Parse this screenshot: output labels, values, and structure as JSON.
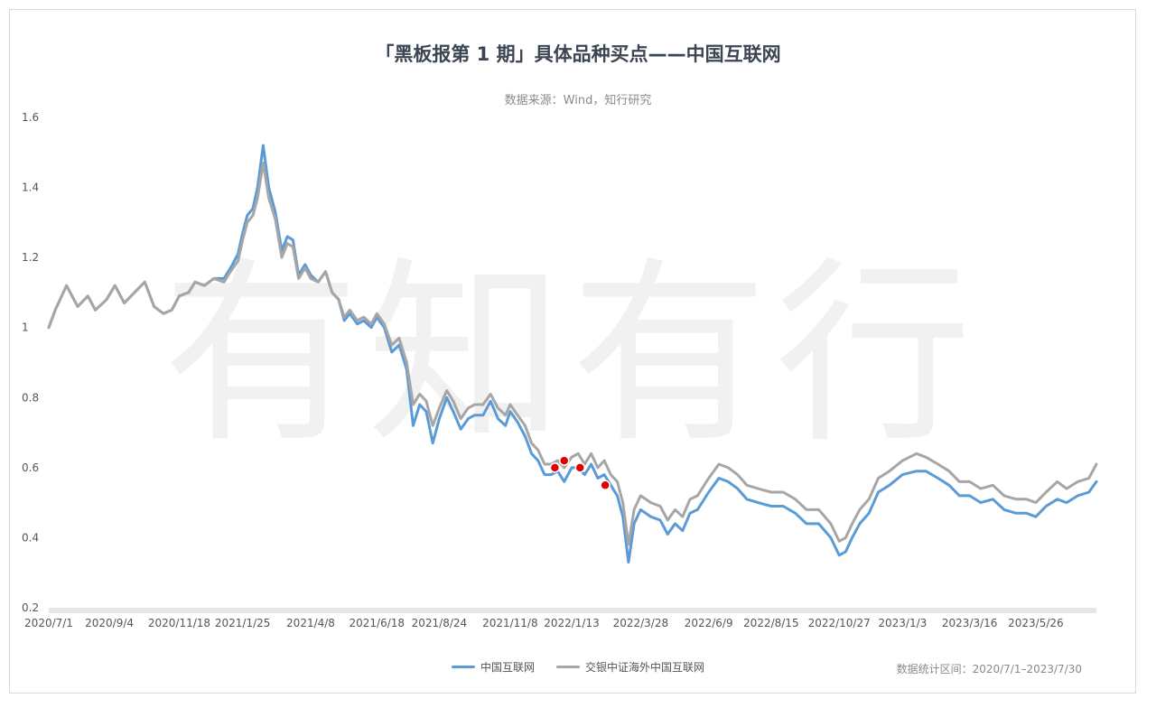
{
  "chart_data": {
    "type": "line",
    "title": "「黑板报第 1 期」具体品种买点——中国互联网",
    "subtitle": "数据来源：Wind，知行研究",
    "note": "数据统计区间：2020/7/1–2023/7/30",
    "watermark": "有知有行",
    "xlabel": "",
    "ylabel": "",
    "ylim": [
      0.2,
      1.6
    ],
    "yticks": [
      "1.6",
      "1.4",
      "1.2",
      "1",
      "0.8",
      "0.6",
      "0.4",
      "0.2"
    ],
    "xlim": [
      "2020/7/1",
      "2023/7/30"
    ],
    "xticks": [
      "2020/7/1",
      "2020/9/4",
      "2020/11/18",
      "2021/1/25",
      "2021/4/8",
      "2021/6/18",
      "2021/8/24",
      "2021/11/8",
      "2022/1/13",
      "2022/3/28",
      "2022/6/9",
      "2022/8/15",
      "2022/10/27",
      "2023/1/3",
      "2023/3/16",
      "2023/5/26"
    ],
    "legend_position": "bottom",
    "grid": false,
    "series": [
      {
        "name": "中国互联网",
        "color": "#5b9bd5",
        "points": [
          [
            "2020/7/1",
            1.0
          ],
          [
            "2020/7/8",
            1.05
          ],
          [
            "2020/7/20",
            1.12
          ],
          [
            "2020/8/1",
            1.06
          ],
          [
            "2020/8/12",
            1.09
          ],
          [
            "2020/8/20",
            1.05
          ],
          [
            "2020/9/1",
            1.08
          ],
          [
            "2020/9/10",
            1.12
          ],
          [
            "2020/9/20",
            1.07
          ],
          [
            "2020/10/1",
            1.1
          ],
          [
            "2020/10/12",
            1.13
          ],
          [
            "2020/10/22",
            1.06
          ],
          [
            "2020/11/1",
            1.04
          ],
          [
            "2020/11/10",
            1.05
          ],
          [
            "2020/11/18",
            1.09
          ],
          [
            "2020/11/28",
            1.1
          ],
          [
            "2020/12/5",
            1.13
          ],
          [
            "2020/12/15",
            1.12
          ],
          [
            "2020/12/25",
            1.14
          ],
          [
            "2021/1/5",
            1.14
          ],
          [
            "2021/1/12",
            1.17
          ],
          [
            "2021/1/20",
            1.21
          ],
          [
            "2021/1/25",
            1.27
          ],
          [
            "2021/1/30",
            1.32
          ],
          [
            "2021/2/5",
            1.34
          ],
          [
            "2021/2/10",
            1.4
          ],
          [
            "2021/2/16",
            1.52
          ],
          [
            "2021/2/22",
            1.4
          ],
          [
            "2021/3/1",
            1.33
          ],
          [
            "2021/3/8",
            1.22
          ],
          [
            "2021/3/14",
            1.26
          ],
          [
            "2021/3/20",
            1.25
          ],
          [
            "2021/3/26",
            1.15
          ],
          [
            "2021/4/2",
            1.18
          ],
          [
            "2021/4/8",
            1.15
          ],
          [
            "2021/4/16",
            1.13
          ],
          [
            "2021/4/24",
            1.16
          ],
          [
            "2021/5/1",
            1.1
          ],
          [
            "2021/5/8",
            1.08
          ],
          [
            "2021/5/14",
            1.02
          ],
          [
            "2021/5/20",
            1.04
          ],
          [
            "2021/5/28",
            1.01
          ],
          [
            "2021/6/4",
            1.02
          ],
          [
            "2021/6/12",
            1.0
          ],
          [
            "2021/6/18",
            1.03
          ],
          [
            "2021/6/26",
            1.0
          ],
          [
            "2021/7/4",
            0.93
          ],
          [
            "2021/7/12",
            0.95
          ],
          [
            "2021/7/20",
            0.88
          ],
          [
            "2021/7/27",
            0.72
          ],
          [
            "2021/8/3",
            0.78
          ],
          [
            "2021/8/10",
            0.76
          ],
          [
            "2021/8/17",
            0.67
          ],
          [
            "2021/8/24",
            0.74
          ],
          [
            "2021/9/1",
            0.8
          ],
          [
            "2021/9/8",
            0.76
          ],
          [
            "2021/9/16",
            0.71
          ],
          [
            "2021/9/24",
            0.74
          ],
          [
            "2021/10/1",
            0.75
          ],
          [
            "2021/10/10",
            0.75
          ],
          [
            "2021/10/18",
            0.79
          ],
          [
            "2021/10/26",
            0.74
          ],
          [
            "2021/11/3",
            0.72
          ],
          [
            "2021/11/8",
            0.76
          ],
          [
            "2021/11/16",
            0.73
          ],
          [
            "2021/11/24",
            0.69
          ],
          [
            "2021/12/1",
            0.64
          ],
          [
            "2021/12/8",
            0.62
          ],
          [
            "2021/12/15",
            0.58
          ],
          [
            "2021/12/22",
            0.58
          ],
          [
            "2021/12/29",
            0.59
          ],
          [
            "2022/1/5",
            0.56
          ],
          [
            "2022/1/13",
            0.6
          ],
          [
            "2022/1/20",
            0.6
          ],
          [
            "2022/1/27",
            0.58
          ],
          [
            "2022/2/3",
            0.61
          ],
          [
            "2022/2/10",
            0.57
          ],
          [
            "2022/2/17",
            0.58
          ],
          [
            "2022/2/24",
            0.55
          ],
          [
            "2022/3/3",
            0.52
          ],
          [
            "2022/3/9",
            0.46
          ],
          [
            "2022/3/15",
            0.33
          ],
          [
            "2022/3/21",
            0.44
          ],
          [
            "2022/3/28",
            0.48
          ],
          [
            "2022/4/8",
            0.46
          ],
          [
            "2022/4/18",
            0.45
          ],
          [
            "2022/4/26",
            0.41
          ],
          [
            "2022/5/4",
            0.44
          ],
          [
            "2022/5/12",
            0.42
          ],
          [
            "2022/5/20",
            0.47
          ],
          [
            "2022/5/28",
            0.48
          ],
          [
            "2022/6/9",
            0.53
          ],
          [
            "2022/6/20",
            0.57
          ],
          [
            "2022/6/30",
            0.56
          ],
          [
            "2022/7/10",
            0.54
          ],
          [
            "2022/7/20",
            0.51
          ],
          [
            "2022/8/1",
            0.5
          ],
          [
            "2022/8/15",
            0.49
          ],
          [
            "2022/8/28",
            0.49
          ],
          [
            "2022/9/10",
            0.47
          ],
          [
            "2022/9/22",
            0.44
          ],
          [
            "2022/10/5",
            0.44
          ],
          [
            "2022/10/18",
            0.4
          ],
          [
            "2022/10/27",
            0.35
          ],
          [
            "2022/11/3",
            0.36
          ],
          [
            "2022/11/10",
            0.4
          ],
          [
            "2022/11/18",
            0.44
          ],
          [
            "2022/11/28",
            0.47
          ],
          [
            "2022/12/8",
            0.53
          ],
          [
            "2022/12/20",
            0.55
          ],
          [
            "2023/1/3",
            0.58
          ],
          [
            "2023/1/18",
            0.59
          ],
          [
            "2023/1/28",
            0.59
          ],
          [
            "2023/2/10",
            0.57
          ],
          [
            "2023/2/22",
            0.55
          ],
          [
            "2023/3/5",
            0.52
          ],
          [
            "2023/3/16",
            0.52
          ],
          [
            "2023/3/28",
            0.5
          ],
          [
            "2023/4/10",
            0.51
          ],
          [
            "2023/4/22",
            0.48
          ],
          [
            "2023/5/5",
            0.47
          ],
          [
            "2023/5/16",
            0.47
          ],
          [
            "2023/5/26",
            0.46
          ],
          [
            "2023/6/6",
            0.49
          ],
          [
            "2023/6/18",
            0.51
          ],
          [
            "2023/6/28",
            0.5
          ],
          [
            "2023/7/10",
            0.52
          ],
          [
            "2023/7/22",
            0.53
          ],
          [
            "2023/7/30",
            0.56
          ]
        ]
      },
      {
        "name": "交银中证海外中国互联网",
        "color": "#a6a6a6",
        "points": [
          [
            "2020/7/1",
            1.0
          ],
          [
            "2020/7/8",
            1.05
          ],
          [
            "2020/7/20",
            1.12
          ],
          [
            "2020/8/1",
            1.06
          ],
          [
            "2020/8/12",
            1.09
          ],
          [
            "2020/8/20",
            1.05
          ],
          [
            "2020/9/1",
            1.08
          ],
          [
            "2020/9/10",
            1.12
          ],
          [
            "2020/9/20",
            1.07
          ],
          [
            "2020/10/1",
            1.1
          ],
          [
            "2020/10/12",
            1.13
          ],
          [
            "2020/10/22",
            1.06
          ],
          [
            "2020/11/1",
            1.04
          ],
          [
            "2020/11/10",
            1.05
          ],
          [
            "2020/11/18",
            1.09
          ],
          [
            "2020/11/28",
            1.1
          ],
          [
            "2020/12/5",
            1.13
          ],
          [
            "2020/12/15",
            1.12
          ],
          [
            "2020/12/25",
            1.14
          ],
          [
            "2021/1/5",
            1.13
          ],
          [
            "2021/1/12",
            1.16
          ],
          [
            "2021/1/20",
            1.19
          ],
          [
            "2021/1/25",
            1.25
          ],
          [
            "2021/1/30",
            1.3
          ],
          [
            "2021/2/5",
            1.32
          ],
          [
            "2021/2/10",
            1.37
          ],
          [
            "2021/2/16",
            1.47
          ],
          [
            "2021/2/22",
            1.37
          ],
          [
            "2021/3/1",
            1.31
          ],
          [
            "2021/3/8",
            1.2
          ],
          [
            "2021/3/14",
            1.24
          ],
          [
            "2021/3/20",
            1.23
          ],
          [
            "2021/3/26",
            1.14
          ],
          [
            "2021/4/2",
            1.17
          ],
          [
            "2021/4/8",
            1.14
          ],
          [
            "2021/4/16",
            1.13
          ],
          [
            "2021/4/24",
            1.16
          ],
          [
            "2021/5/1",
            1.1
          ],
          [
            "2021/5/8",
            1.08
          ],
          [
            "2021/5/14",
            1.03
          ],
          [
            "2021/5/20",
            1.05
          ],
          [
            "2021/5/28",
            1.02
          ],
          [
            "2021/6/4",
            1.03
          ],
          [
            "2021/6/12",
            1.01
          ],
          [
            "2021/6/18",
            1.04
          ],
          [
            "2021/6/26",
            1.01
          ],
          [
            "2021/7/4",
            0.95
          ],
          [
            "2021/7/12",
            0.97
          ],
          [
            "2021/7/20",
            0.9
          ],
          [
            "2021/7/27",
            0.78
          ],
          [
            "2021/8/3",
            0.81
          ],
          [
            "2021/8/10",
            0.79
          ],
          [
            "2021/8/17",
            0.72
          ],
          [
            "2021/8/24",
            0.77
          ],
          [
            "2021/9/1",
            0.82
          ],
          [
            "2021/9/8",
            0.79
          ],
          [
            "2021/9/16",
            0.74
          ],
          [
            "2021/9/24",
            0.77
          ],
          [
            "2021/10/1",
            0.78
          ],
          [
            "2021/10/10",
            0.78
          ],
          [
            "2021/10/18",
            0.81
          ],
          [
            "2021/10/26",
            0.77
          ],
          [
            "2021/11/3",
            0.75
          ],
          [
            "2021/11/8",
            0.78
          ],
          [
            "2021/11/16",
            0.75
          ],
          [
            "2021/11/24",
            0.72
          ],
          [
            "2021/12/1",
            0.67
          ],
          [
            "2021/12/8",
            0.65
          ],
          [
            "2021/12/15",
            0.61
          ],
          [
            "2021/12/22",
            0.61
          ],
          [
            "2021/12/29",
            0.62
          ],
          [
            "2022/1/5",
            0.6
          ],
          [
            "2022/1/13",
            0.63
          ],
          [
            "2022/1/20",
            0.64
          ],
          [
            "2022/1/27",
            0.61
          ],
          [
            "2022/2/3",
            0.64
          ],
          [
            "2022/2/10",
            0.6
          ],
          [
            "2022/2/17",
            0.62
          ],
          [
            "2022/2/24",
            0.58
          ],
          [
            "2022/3/3",
            0.56
          ],
          [
            "2022/3/9",
            0.5
          ],
          [
            "2022/3/15",
            0.38
          ],
          [
            "2022/3/21",
            0.48
          ],
          [
            "2022/3/28",
            0.52
          ],
          [
            "2022/4/8",
            0.5
          ],
          [
            "2022/4/18",
            0.49
          ],
          [
            "2022/4/26",
            0.45
          ],
          [
            "2022/5/4",
            0.48
          ],
          [
            "2022/5/12",
            0.46
          ],
          [
            "2022/5/20",
            0.51
          ],
          [
            "2022/5/28",
            0.52
          ],
          [
            "2022/6/9",
            0.57
          ],
          [
            "2022/6/20",
            0.61
          ],
          [
            "2022/6/30",
            0.6
          ],
          [
            "2022/7/10",
            0.58
          ],
          [
            "2022/7/20",
            0.55
          ],
          [
            "2022/8/1",
            0.54
          ],
          [
            "2022/8/15",
            0.53
          ],
          [
            "2022/8/28",
            0.53
          ],
          [
            "2022/9/10",
            0.51
          ],
          [
            "2022/9/22",
            0.48
          ],
          [
            "2022/10/5",
            0.48
          ],
          [
            "2022/10/18",
            0.44
          ],
          [
            "2022/10/27",
            0.39
          ],
          [
            "2022/11/3",
            0.4
          ],
          [
            "2022/11/10",
            0.44
          ],
          [
            "2022/11/18",
            0.48
          ],
          [
            "2022/11/28",
            0.51
          ],
          [
            "2022/12/8",
            0.57
          ],
          [
            "2022/12/20",
            0.59
          ],
          [
            "2023/1/3",
            0.62
          ],
          [
            "2023/1/18",
            0.64
          ],
          [
            "2023/1/28",
            0.63
          ],
          [
            "2023/2/10",
            0.61
          ],
          [
            "2023/2/22",
            0.59
          ],
          [
            "2023/3/5",
            0.56
          ],
          [
            "2023/3/16",
            0.56
          ],
          [
            "2023/3/28",
            0.54
          ],
          [
            "2023/4/10",
            0.55
          ],
          [
            "2023/4/22",
            0.52
          ],
          [
            "2023/5/5",
            0.51
          ],
          [
            "2023/5/16",
            0.51
          ],
          [
            "2023/5/26",
            0.5
          ],
          [
            "2023/6/6",
            0.53
          ],
          [
            "2023/6/18",
            0.56
          ],
          [
            "2023/6/28",
            0.54
          ],
          [
            "2023/7/10",
            0.56
          ],
          [
            "2023/7/22",
            0.57
          ],
          [
            "2023/7/30",
            0.61
          ]
        ]
      }
    ],
    "markers": [
      {
        "x": "2021/12/26",
        "y": 0.6,
        "color": "#e00000"
      },
      {
        "x": "2022/1/5",
        "y": 0.62,
        "color": "#e00000"
      },
      {
        "x": "2022/1/22",
        "y": 0.6,
        "color": "#e00000"
      },
      {
        "x": "2022/2/18",
        "y": 0.55,
        "color": "#e00000"
      }
    ]
  }
}
